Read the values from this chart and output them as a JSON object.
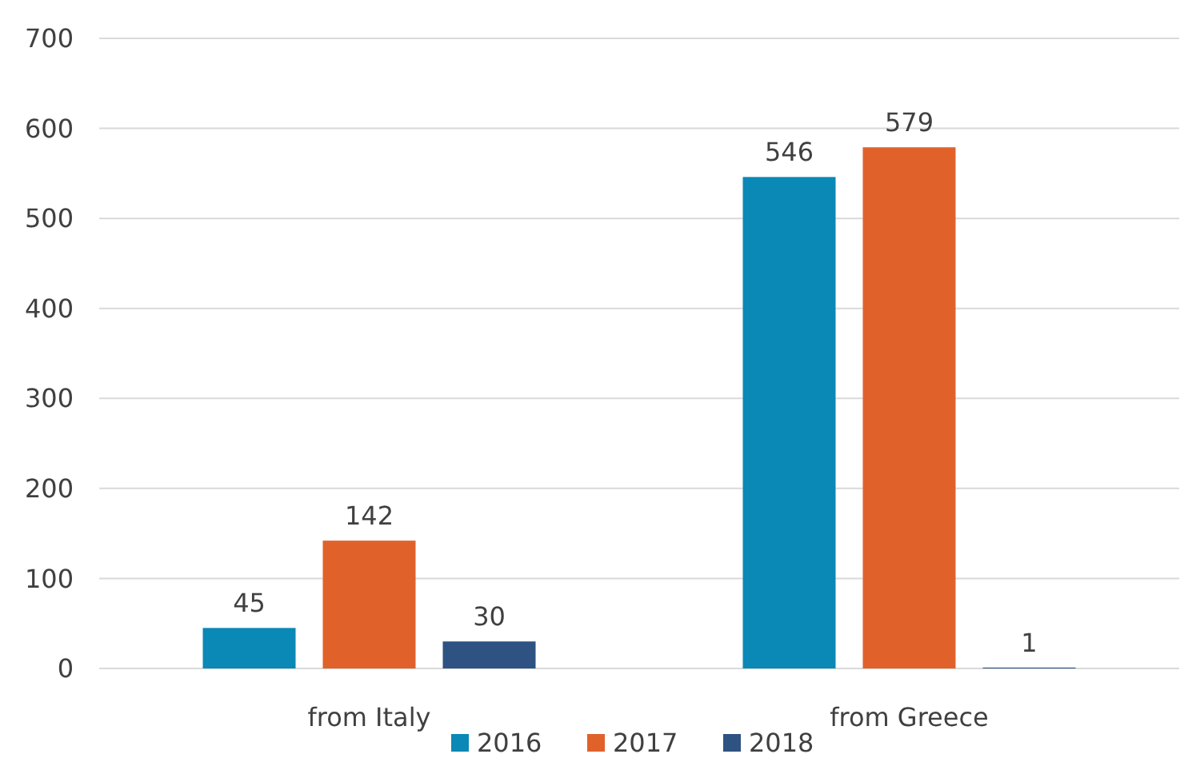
{
  "chart_data": {
    "type": "bar",
    "categories": [
      "from Italy",
      "from Greece"
    ],
    "series": [
      {
        "name": "2016",
        "color": "#0a88b6",
        "values": [
          45,
          546
        ]
      },
      {
        "name": "2017",
        "color": "#e0622a",
        "values": [
          142,
          579
        ]
      },
      {
        "name": "2018",
        "color": "#2e5281",
        "values": [
          30,
          1
        ]
      }
    ],
    "ylim": [
      0,
      700
    ],
    "yticks": [
      0,
      100,
      200,
      300,
      400,
      500,
      600,
      700
    ],
    "grid": "y",
    "legend": "bottom",
    "data_labels": true
  }
}
